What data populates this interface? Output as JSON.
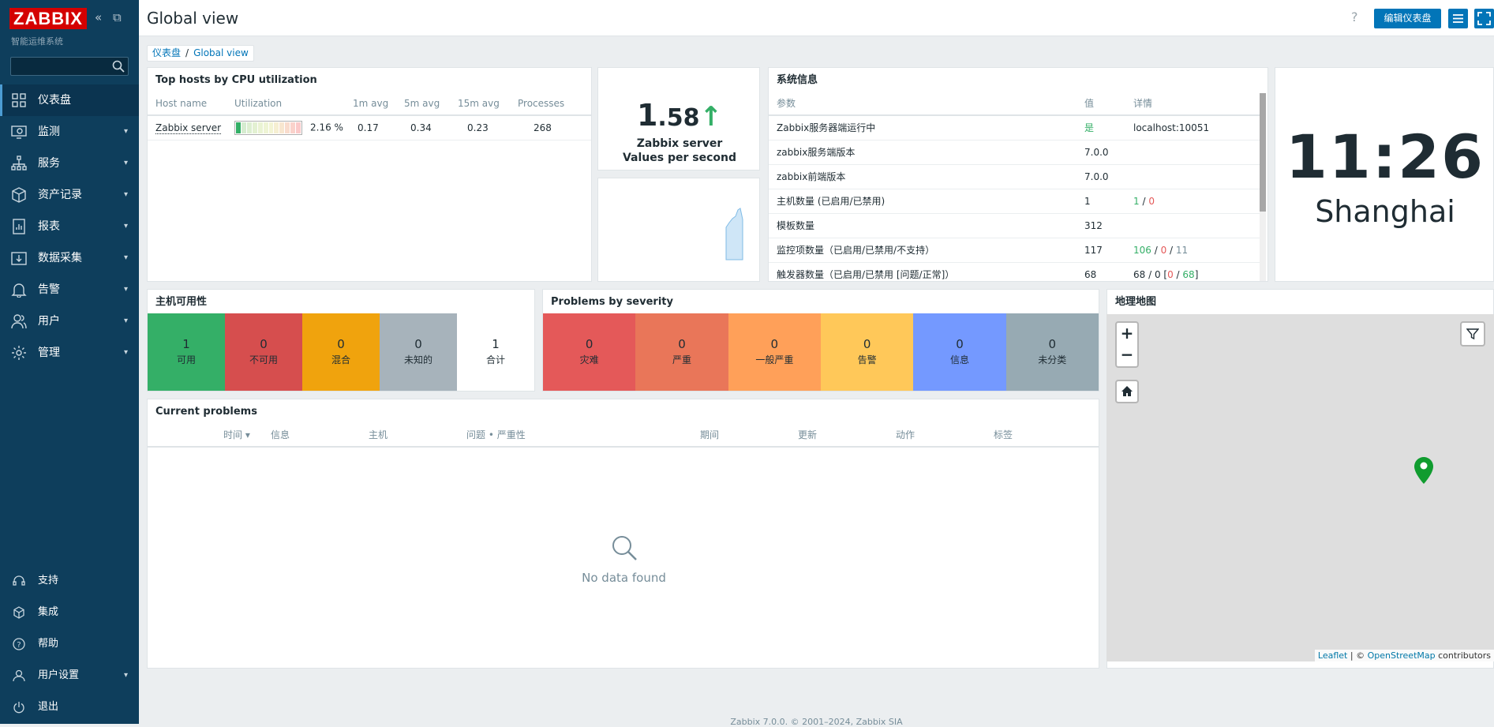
{
  "sidebar": {
    "logo": "ZABBIX",
    "tagline": "智能运维系统",
    "search_placeholder": "",
    "nav": [
      {
        "label": "仪表盘",
        "icon": "dashboard-icon"
      },
      {
        "label": "监测",
        "icon": "monitoring-icon"
      },
      {
        "label": "服务",
        "icon": "services-icon"
      },
      {
        "label": "资产记录",
        "icon": "inventory-icon"
      },
      {
        "label": "报表",
        "icon": "reports-icon"
      },
      {
        "label": "数据采集",
        "icon": "data-collection-icon"
      },
      {
        "label": "告警",
        "icon": "alerts-icon"
      },
      {
        "label": "用户",
        "icon": "users-icon"
      },
      {
        "label": "管理",
        "icon": "administration-icon"
      }
    ],
    "bottom": [
      {
        "label": "支持",
        "icon": "support-icon"
      },
      {
        "label": "集成",
        "icon": "integrations-icon"
      },
      {
        "label": "帮助",
        "icon": "help-icon"
      },
      {
        "label": "用户设置",
        "icon": "user-settings-icon"
      },
      {
        "label": "退出",
        "icon": "signout-icon"
      }
    ]
  },
  "header": {
    "title": "Global view",
    "help": "?",
    "edit_button": "编辑仪表盘"
  },
  "breadcrumb": {
    "root": "仪表盘",
    "sep": "/",
    "current": "Global view"
  },
  "top_hosts": {
    "title": "Top hosts by CPU utilization",
    "columns": [
      "Host name",
      "Utilization",
      "1m avg",
      "5m avg",
      "15m avg",
      "Processes"
    ],
    "rows": [
      {
        "host": "Zabbix server",
        "utilization": "2.16 %",
        "utilization_value": 0.0216,
        "avg1": "0.17",
        "avg5": "0.34",
        "avg15": "0.23",
        "processes": "268"
      }
    ]
  },
  "vps": {
    "int": "1",
    "dec": ".58",
    "arrow": "↑",
    "label1": "Zabbix server",
    "label2": "Values per second",
    "value": 1.58
  },
  "sysinfo": {
    "title": "系统信息",
    "columns": [
      "参数",
      "值",
      "详情"
    ],
    "rows": [
      {
        "param": "Zabbix服务器端运行中",
        "value": "是",
        "detail": "localhost:10051"
      },
      {
        "param": "zabbix服务端版本",
        "value": "7.0.0",
        "detail": ""
      },
      {
        "param": "zabbix前端版本",
        "value": "7.0.0",
        "detail": ""
      },
      {
        "param": "主机数量 (已启用/已禁用)",
        "value": "1",
        "d1": "1",
        "d2": "0"
      },
      {
        "param": "模板数量",
        "value": "312",
        "detail": ""
      },
      {
        "param": "监控项数量（已启用/已禁用/不支持）",
        "value": "117",
        "d1": "106",
        "d2": "0",
        "d3": "11"
      },
      {
        "param": "触发器数量（已启用/已禁用 [问题/正常]）",
        "value": "68",
        "d1": "68",
        "d2": "0",
        "d3": "0",
        "d4": "68"
      }
    ]
  },
  "clock": {
    "time": "11:26",
    "timezone": "Shanghai"
  },
  "host_availability": {
    "title": "主机可用性",
    "tiles": [
      {
        "count": "1",
        "label": "可用",
        "color": "#34af67"
      },
      {
        "count": "0",
        "label": "不可用",
        "color": "#d64e4e"
      },
      {
        "count": "0",
        "label": "混合",
        "color": "#f0a30d"
      },
      {
        "count": "0",
        "label": "未知的",
        "color": "#a7b3bb"
      },
      {
        "count": "1",
        "label": "合计",
        "color": "#ffffff"
      }
    ]
  },
  "problems_severity": {
    "title": "Problems by severity",
    "tiles": [
      {
        "count": "0",
        "label": "灾难",
        "color": "#e45959"
      },
      {
        "count": "0",
        "label": "严重",
        "color": "#e97659"
      },
      {
        "count": "0",
        "label": "一般严重",
        "color": "#ffa059"
      },
      {
        "count": "0",
        "label": "告警",
        "color": "#ffc859"
      },
      {
        "count": "0",
        "label": "信息",
        "color": "#7499ff"
      },
      {
        "count": "0",
        "label": "未分类",
        "color": "#97aab3"
      }
    ]
  },
  "current_problems": {
    "title": "Current problems",
    "columns": [
      "时间 ▾",
      "信息",
      "主机",
      "问题 • 严重性",
      "期间",
      "更新",
      "动作",
      "标签"
    ],
    "empty": "No data found"
  },
  "geomap": {
    "title": "地理地图",
    "zoom_in": "+",
    "zoom_out": "−",
    "attribution_leaflet": "Leaflet",
    "attribution_mid": " | © ",
    "attribution_osm": "OpenStreetMap",
    "attribution_end": " contributors"
  },
  "footer": "Zabbix 7.0.0. © 2001–2024, Zabbix SIA"
}
